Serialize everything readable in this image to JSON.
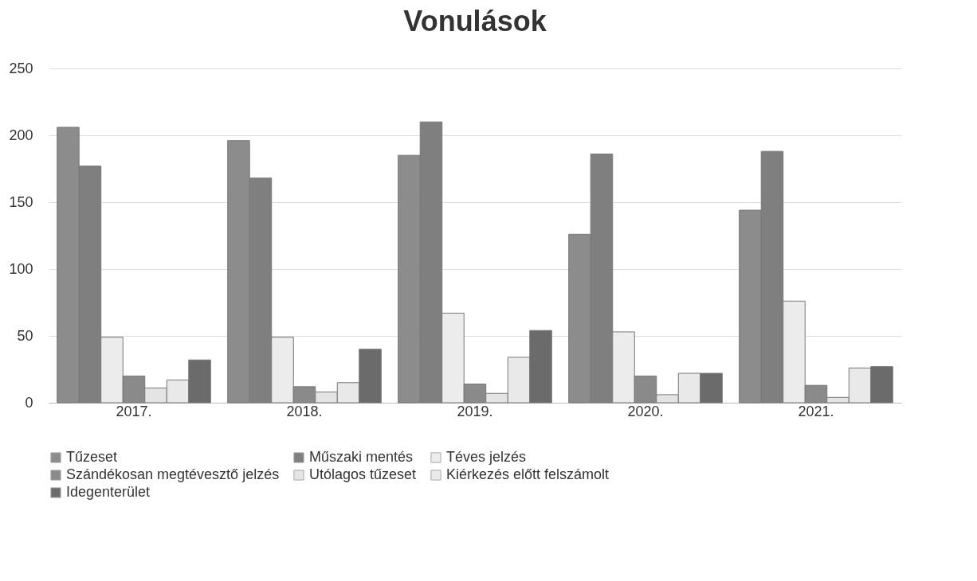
{
  "chart_data": {
    "type": "bar",
    "title": "Vonulások",
    "categories": [
      "2017.",
      "2018.",
      "2019.",
      "2020.",
      "2021."
    ],
    "series": [
      {
        "name": "Tűzeset",
        "color": "#8c8c8c",
        "values": [
          206,
          196,
          185,
          126,
          144
        ]
      },
      {
        "name": "Műszaki mentés",
        "color": "#7f7f7f",
        "values": [
          177,
          168,
          210,
          186,
          188
        ]
      },
      {
        "name": "Téves jelzés",
        "color": "#ececec",
        "values": [
          49,
          49,
          67,
          53,
          76
        ]
      },
      {
        "name": "Szándékosan megtévesztő jelzés",
        "color": "#8a8a8a",
        "values": [
          20,
          12,
          14,
          20,
          13
        ]
      },
      {
        "name": "Utólagos tűzeset",
        "color": "#e4e4e4",
        "values": [
          11,
          8,
          7,
          6,
          4
        ]
      },
      {
        "name": "Kiérkezés előtt felszámolt",
        "color": "#e9e9e9",
        "values": [
          17,
          15,
          34,
          22,
          26
        ]
      },
      {
        "name": "Idegenterület",
        "color": "#6b6b6b",
        "values": [
          32,
          40,
          54,
          22,
          27
        ]
      }
    ],
    "ylim": [
      0,
      250
    ],
    "yticks": [
      0,
      50,
      100,
      150,
      200,
      250
    ],
    "grid": "y",
    "legend": "bottom"
  }
}
